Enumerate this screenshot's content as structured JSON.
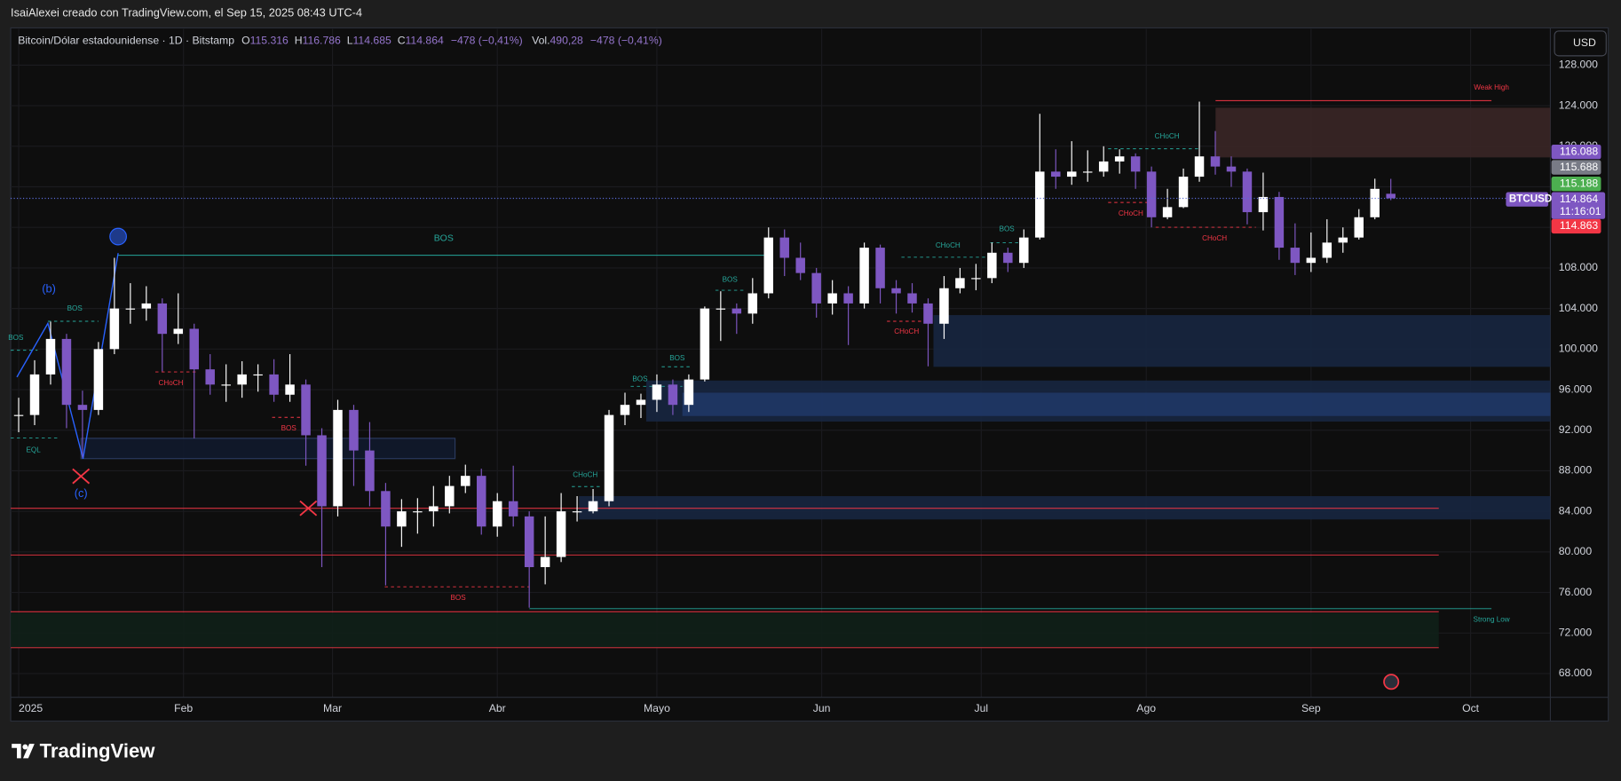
{
  "header": "IsaiAlexei creado con TradingView.com, el Sep 15, 2025 08:43 UTC-4",
  "legend": {
    "symbol": "Bitcoin/Dólar estadounidense · 1D · Bitstamp",
    "items": [
      {
        "key": "O",
        "value": "115.316"
      },
      {
        "key": "H",
        "value": "116.786"
      },
      {
        "key": "L",
        "value": "114.685"
      },
      {
        "key": "C",
        "value": "114.864"
      }
    ],
    "change": "−478 (−0,41%)",
    "volume_key": "Vol.",
    "volume": "490,28",
    "volume_change": "−478 (−0,41%)"
  },
  "currency": "USD",
  "footer": "TradingView",
  "chart_data": {
    "type": "candlestick",
    "up_color": "#ffffff",
    "down_color": "#7e57c2",
    "xlim": [
      -0.5,
      96
    ],
    "ylim": [
      65660,
      131570
    ],
    "xticks": [
      {
        "value": 0,
        "label": "2025"
      },
      {
        "value": 10.33,
        "label": "Feb"
      },
      {
        "value": 19.67,
        "label": "Mar"
      },
      {
        "value": 30,
        "label": "Abr"
      },
      {
        "value": 40,
        "label": "Mayo"
      },
      {
        "value": 50.33,
        "label": "Jun"
      },
      {
        "value": 60.33,
        "label": "Jul"
      },
      {
        "value": 70.67,
        "label": "Ago"
      },
      {
        "value": 81,
        "label": "Sep"
      },
      {
        "value": 91,
        "label": "Oct"
      }
    ],
    "yticks": [
      {
        "value": 68000,
        "label": "68.000"
      },
      {
        "value": 72000,
        "label": "72.000"
      },
      {
        "value": 76000,
        "label": "76.000"
      },
      {
        "value": 80000,
        "label": "80.000"
      },
      {
        "value": 84000,
        "label": "84.000"
      },
      {
        "value": 88000,
        "label": "88.000"
      },
      {
        "value": 92000,
        "label": "92.000"
      },
      {
        "value": 96000,
        "label": "96.000"
      },
      {
        "value": 100000,
        "label": "100.000"
      },
      {
        "value": 104000,
        "label": "104.000"
      },
      {
        "value": 108000,
        "label": "108.000"
      },
      {
        "value": 112000,
        "label": "112.000"
      },
      {
        "value": 116000,
        "label": "116.000"
      },
      {
        "value": 120000,
        "label": "120.000"
      },
      {
        "value": 124000,
        "label": "124.000"
      },
      {
        "value": 128000,
        "label": "128.000"
      }
    ],
    "grid": true,
    "candles": [
      [
        93400,
        95200,
        91800,
        93500
      ],
      [
        93500,
        98900,
        92500,
        97500
      ],
      [
        97500,
        102700,
        96500,
        101000
      ],
      [
        101000,
        101500,
        92200,
        94500
      ],
      [
        94500,
        95900,
        89300,
        94000
      ],
      [
        94000,
        100700,
        93500,
        100000
      ],
      [
        100000,
        109000,
        99500,
        104000
      ],
      [
        104000,
        106500,
        102500,
        104000
      ],
      [
        104000,
        106200,
        102800,
        104500
      ],
      [
        104500,
        105000,
        97800,
        101500
      ],
      [
        101500,
        105500,
        100500,
        102000
      ],
      [
        102000,
        102500,
        91200,
        98000
      ],
      [
        98000,
        99500,
        95500,
        96500
      ],
      [
        96500,
        98500,
        94800,
        96500
      ],
      [
        96500,
        98800,
        95200,
        97500
      ],
      [
        97500,
        98500,
        95800,
        97500
      ],
      [
        97500,
        99000,
        94800,
        95500
      ],
      [
        95500,
        99500,
        94800,
        96500
      ],
      [
        96500,
        97000,
        88500,
        91500
      ],
      [
        91500,
        92200,
        78500,
        84500
      ],
      [
        84500,
        95000,
        83500,
        94000
      ],
      [
        94000,
        94500,
        86500,
        90000
      ],
      [
        90000,
        92800,
        84500,
        86000
      ],
      [
        86000,
        86800,
        76700,
        82500
      ],
      [
        82500,
        85200,
        80500,
        84000
      ],
      [
        84000,
        85300,
        81800,
        84000
      ],
      [
        84000,
        86500,
        82500,
        84500
      ],
      [
        84500,
        87500,
        83800,
        86500
      ],
      [
        86500,
        88600,
        85800,
        87500
      ],
      [
        87500,
        88200,
        81700,
        82500
      ],
      [
        82500,
        85800,
        81500,
        85000
      ],
      [
        85000,
        88500,
        82500,
        83500
      ],
      [
        83500,
        84000,
        74500,
        78500
      ],
      [
        78500,
        83500,
        76800,
        79500
      ],
      [
        79500,
        85800,
        79000,
        84000
      ],
      [
        84000,
        85500,
        83000,
        84000
      ],
      [
        84000,
        86200,
        83800,
        85000
      ],
      [
        85000,
        94000,
        84500,
        93500
      ],
      [
        93500,
        95700,
        92500,
        94500
      ],
      [
        94500,
        95600,
        93200,
        95000
      ],
      [
        95000,
        97500,
        93800,
        96500
      ],
      [
        96500,
        97000,
        93500,
        94500
      ],
      [
        94500,
        97500,
        93800,
        97000
      ],
      [
        97000,
        104200,
        96800,
        104000
      ],
      [
        104000,
        105700,
        100800,
        104000
      ],
      [
        104000,
        104500,
        101500,
        103500
      ],
      [
        103500,
        107000,
        102500,
        105500
      ],
      [
        105500,
        112000,
        105000,
        111000
      ],
      [
        111000,
        111800,
        107200,
        109000
      ],
      [
        109000,
        110500,
        106800,
        107500
      ],
      [
        107500,
        108000,
        103100,
        104500
      ],
      [
        104500,
        106800,
        103400,
        105500
      ],
      [
        105500,
        106200,
        100400,
        104500
      ],
      [
        104500,
        110500,
        104000,
        110000
      ],
      [
        110000,
        110300,
        104500,
        106000
      ],
      [
        106000,
        106800,
        103500,
        105500
      ],
      [
        105500,
        106500,
        103600,
        104500
      ],
      [
        104500,
        105000,
        98300,
        102500
      ],
      [
        102500,
        107200,
        101000,
        106000
      ],
      [
        106000,
        108000,
        105500,
        107000
      ],
      [
        107000,
        108400,
        105800,
        107000
      ],
      [
        107000,
        110500,
        106500,
        109500
      ],
      [
        109500,
        110000,
        107600,
        108500
      ],
      [
        108500,
        111800,
        108000,
        111000
      ],
      [
        111000,
        123200,
        110800,
        117500
      ],
      [
        117500,
        119700,
        115800,
        117000
      ],
      [
        117000,
        120500,
        116200,
        117500
      ],
      [
        117500,
        119600,
        116500,
        117500
      ],
      [
        117500,
        120000,
        117000,
        118500
      ],
      [
        118500,
        119700,
        117300,
        119000
      ],
      [
        119000,
        119300,
        115800,
        117500
      ],
      [
        117500,
        118000,
        112000,
        113000
      ],
      [
        113000,
        115800,
        112800,
        114000
      ],
      [
        114000,
        117800,
        113900,
        117000
      ],
      [
        117000,
        124400,
        116500,
        119000
      ],
      [
        119000,
        121500,
        117200,
        118000
      ],
      [
        118000,
        119000,
        116000,
        117500
      ],
      [
        117500,
        117800,
        112300,
        113500
      ],
      [
        113500,
        117400,
        111700,
        115000
      ],
      [
        115000,
        115500,
        108800,
        110000
      ],
      [
        110000,
        112400,
        107300,
        108500
      ],
      [
        108500,
        111500,
        107600,
        109000
      ],
      [
        109000,
        112800,
        108500,
        110500
      ],
      [
        110500,
        112000,
        109500,
        111000
      ],
      [
        111000,
        113800,
        110800,
        113000
      ],
      [
        113000,
        116800,
        112800,
        115800
      ],
      [
        115316,
        116786,
        114685,
        114864
      ]
    ],
    "last_price": 114864,
    "zones": [
      {
        "top": 123800,
        "bottom": 118900,
        "color": "#3a2626"
      },
      {
        "top": 103350,
        "bottom": 98250,
        "color": "#172640"
      },
      {
        "top": 96900,
        "bottom": 92850,
        "color": "#172640"
      },
      {
        "top": 95700,
        "bottom": 93400,
        "color": "#1f3766"
      },
      {
        "top": 85500,
        "bottom": 83200,
        "color": "#172640"
      },
      {
        "top": 91200,
        "bottom": 89200,
        "color": "#111a2c"
      },
      {
        "top": 74000,
        "bottom": 70550,
        "color": "#0f2018"
      }
    ],
    "lines": [
      {
        "value": 124500,
        "color": "#f23645"
      },
      {
        "value": 109250,
        "color": "#26a69a"
      },
      {
        "value": 84300,
        "color": "#f23645"
      },
      {
        "value": 79700,
        "color": "#f23645"
      },
      {
        "value": 74100,
        "color": "#f23645"
      },
      {
        "value": 74400,
        "color": "#26a69a"
      },
      {
        "value": 70550,
        "color": "#f23645"
      }
    ],
    "annotations": [
      "(b)",
      "(c)",
      "BOS",
      "BOS",
      "BOS",
      "EQL",
      "CHoCH",
      "BOS",
      "BOS",
      "CHoCH",
      "BOS",
      "BOS",
      "BOS",
      "CHoCH",
      "CHoCH",
      "BOS",
      "CHoCH",
      "CHoCH",
      "CHoCH",
      "Weak High",
      "Strong Low"
    ],
    "price_tags": [
      {
        "label": "116.088",
        "color": "#7e57c2"
      },
      {
        "label": "115.688",
        "color": "#787b86"
      },
      {
        "label": "115.188",
        "color": "#4caf50"
      },
      {
        "label": "114.863",
        "color": "#f23645"
      }
    ],
    "current_tag": {
      "symbol": "BTCUSD",
      "label": "114.864",
      "countdown": "11:16:01",
      "color": "#7e57c2"
    }
  }
}
